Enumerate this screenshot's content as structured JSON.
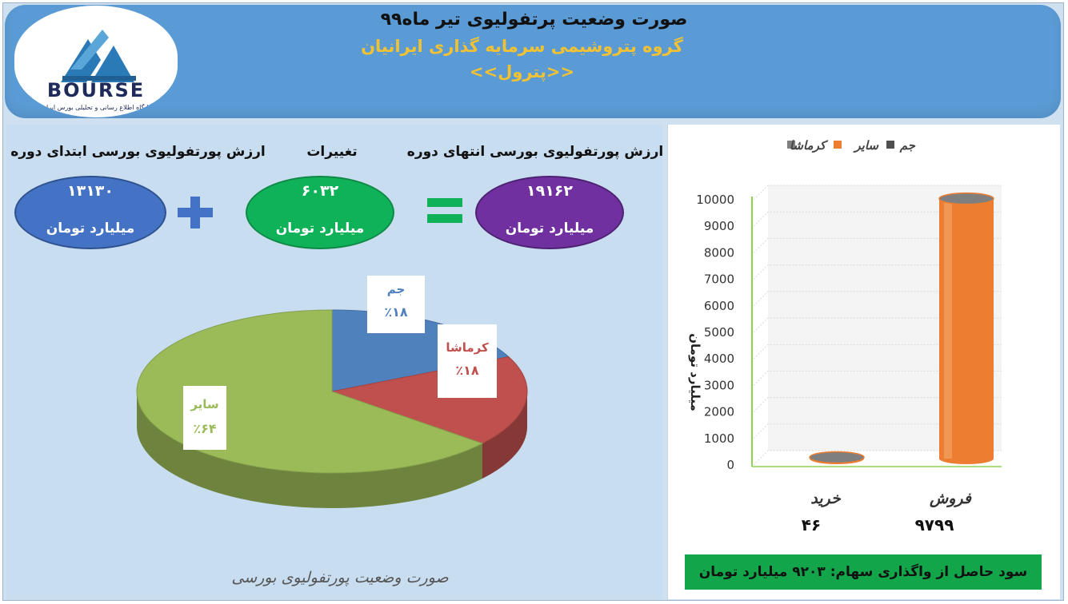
{
  "header": {
    "title": "صورت وضعیت پرتفولیوی تیر ماه۹۹",
    "subtitle": "گروه پتروشیمی سرمایه گذاری ایرانیان",
    "ticker": "<<پترول>>"
  },
  "logo": {
    "brand": "BOURSE",
    "tagline": "پایگاه اطلاع رسانی و تحلیلی بورس ایران"
  },
  "summary": {
    "end_label": "ارزش پورتفولیوی بورسی انتهای دوره",
    "change_label": "تغییرات",
    "start_label": "ارزش پورتفولیوی بورسی ابتدای دوره",
    "end_value": "۱۹۱۶۲",
    "change_value": "۶۰۳۲",
    "start_value": "۱۳۱۳۰",
    "unit": "میلیارد تومان",
    "plus": "+",
    "equals": "="
  },
  "colors": {
    "header": "#5b9bd5",
    "start": "#4472c4",
    "change": "#10b259",
    "end": "#7030a0",
    "gem": "#4f81bd",
    "kermashah": "#c0504d",
    "sayer": "#9bbb59",
    "bar": "#ed7d31"
  },
  "chart_data": [
    {
      "type": "pie",
      "labels": [
        "جم",
        "کرماشا",
        "سایر"
      ],
      "values": [
        18,
        18,
        64
      ],
      "value_labels": [
        "٪۱۸",
        "٪۱۸",
        "٪۶۴"
      ],
      "caption": "صورت وضعیت پورتفولیوی بورسی"
    },
    {
      "type": "bar",
      "categories": [
        "خرید",
        "فروش"
      ],
      "category_values": [
        "۴۶",
        "۹۷۹۹"
      ],
      "series": [
        {
          "name": "جم",
          "values": [
            0,
            0
          ]
        },
        {
          "name": "سایر",
          "values": [
            46,
            9799
          ]
        },
        {
          "name": "کرماشا",
          "values": [
            0,
            0
          ]
        }
      ],
      "legend": [
        "کرماشا",
        "سایر",
        "جم"
      ],
      "ylabel": "میلیارد تومان",
      "ylim": [
        0,
        10000
      ],
      "yticks": [
        "0",
        "1000",
        "2000",
        "3000",
        "4000",
        "5000",
        "6000",
        "7000",
        "8000",
        "9000",
        "10000"
      ],
      "footer": "سود حاصل از واگذاری سهام: ۹۲۰۳ میلیارد تومان"
    }
  ]
}
